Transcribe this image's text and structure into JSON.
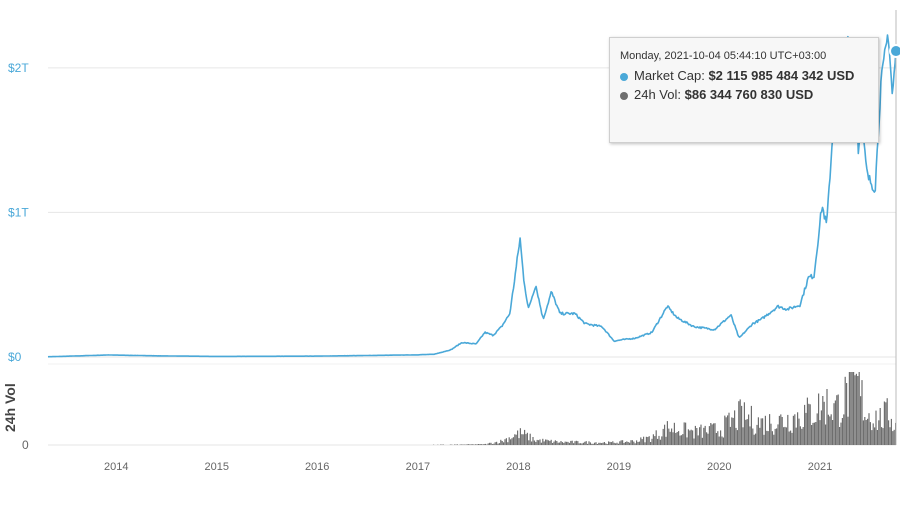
{
  "chart_data": {
    "type": "area",
    "title": "",
    "x_ticks": [
      "2014",
      "2015",
      "2016",
      "2017",
      "2018",
      "2019",
      "2020",
      "2021"
    ],
    "xlim": [
      "2013-04-28",
      "2021-10-04"
    ],
    "market_cap": {
      "name": "Market Cap",
      "unit": "USD trillion",
      "y_ticks": [
        "$0",
        "$1T",
        "$2T"
      ],
      "ylim": [
        0,
        2.4
      ],
      "color": "#4aa8d8",
      "points": [
        [
          "2013-04-28",
          0.0015
        ],
        [
          "2013-12-04",
          0.014
        ],
        [
          "2014-06-01",
          0.008
        ],
        [
          "2015-01-01",
          0.004
        ],
        [
          "2016-01-01",
          0.006
        ],
        [
          "2016-12-31",
          0.015
        ],
        [
          "2017-03-01",
          0.019
        ],
        [
          "2017-05-01",
          0.05
        ],
        [
          "2017-06-10",
          0.1
        ],
        [
          "2017-08-01",
          0.09
        ],
        [
          "2017-09-01",
          0.17
        ],
        [
          "2017-10-01",
          0.15
        ],
        [
          "2017-11-01",
          0.21
        ],
        [
          "2017-12-01",
          0.3
        ],
        [
          "2017-12-20",
          0.56
        ],
        [
          "2018-01-07",
          0.82
        ],
        [
          "2018-01-20",
          0.55
        ],
        [
          "2018-02-06",
          0.33
        ],
        [
          "2018-03-05",
          0.5
        ],
        [
          "2018-04-01",
          0.26
        ],
        [
          "2018-05-01",
          0.45
        ],
        [
          "2018-06-01",
          0.3
        ],
        [
          "2018-07-25",
          0.3
        ],
        [
          "2018-09-01",
          0.23
        ],
        [
          "2018-11-01",
          0.21
        ],
        [
          "2018-12-15",
          0.11
        ],
        [
          "2019-01-15",
          0.12
        ],
        [
          "2019-03-01",
          0.13
        ],
        [
          "2019-05-01",
          0.17
        ],
        [
          "2019-06-26",
          0.35
        ],
        [
          "2019-08-01",
          0.27
        ],
        [
          "2019-10-01",
          0.21
        ],
        [
          "2019-12-15",
          0.19
        ],
        [
          "2020-02-12",
          0.29
        ],
        [
          "2020-03-13",
          0.13
        ],
        [
          "2020-05-01",
          0.23
        ],
        [
          "2020-06-01",
          0.26
        ],
        [
          "2020-08-01",
          0.35
        ],
        [
          "2020-09-05",
          0.33
        ],
        [
          "2020-10-20",
          0.36
        ],
        [
          "2020-11-20",
          0.55
        ],
        [
          "2020-12-10",
          0.56
        ],
        [
          "2021-01-08",
          1.05
        ],
        [
          "2021-01-25",
          0.91
        ],
        [
          "2021-02-20",
          1.65
        ],
        [
          "2021-03-13",
          1.8
        ],
        [
          "2021-04-14",
          2.2
        ],
        [
          "2021-04-25",
          1.78
        ],
        [
          "2021-05-10",
          2.1
        ],
        [
          "2021-05-19",
          1.42
        ],
        [
          "2021-06-01",
          1.6
        ],
        [
          "2021-06-22",
          1.25
        ],
        [
          "2021-07-20",
          1.16
        ],
        [
          "2021-08-10",
          1.88
        ],
        [
          "2021-09-06",
          2.25
        ],
        [
          "2021-09-21",
          1.8
        ],
        [
          "2021-10-04",
          2.116
        ]
      ]
    },
    "volume": {
      "name": "24h Vol",
      "y_title": "24h Vol",
      "y_ticks": [
        "0"
      ],
      "ylim": [
        0,
        320
      ],
      "unit": "USD billion",
      "color": "#6e6e6e",
      "points": [
        [
          "2013-04-28",
          0.05
        ],
        [
          "2017-01-01",
          0.5
        ],
        [
          "2017-06-01",
          2
        ],
        [
          "2017-09-01",
          4
        ],
        [
          "2017-11-01",
          20
        ],
        [
          "2017-12-15",
          50
        ],
        [
          "2018-01-10",
          60
        ],
        [
          "2018-03-01",
          25
        ],
        [
          "2018-06-01",
          15
        ],
        [
          "2018-12-01",
          12
        ],
        [
          "2019-03-01",
          20
        ],
        [
          "2019-05-01",
          40
        ],
        [
          "2019-07-01",
          90
        ],
        [
          "2019-10-01",
          65
        ],
        [
          "2020-01-01",
          80
        ],
        [
          "2020-03-15",
          150
        ],
        [
          "2020-06-01",
          110
        ],
        [
          "2020-09-01",
          130
        ],
        [
          "2020-12-01",
          170
        ],
        [
          "2021-01-15",
          210
        ],
        [
          "2021-03-01",
          190
        ],
        [
          "2021-05-15",
          310
        ],
        [
          "2021-06-15",
          170
        ],
        [
          "2021-08-01",
          130
        ],
        [
          "2021-09-07",
          160
        ],
        [
          "2021-10-04",
          86.3
        ]
      ]
    },
    "legend": "none",
    "grid": true,
    "tooltip": {
      "date": "Monday, 2021-10-04 05:44:10 UTC+03:00",
      "market_cap_label": "Market Cap:",
      "market_cap_value": "$2 115 985 484 342 USD",
      "volume_label": "24h Vol:",
      "volume_value": "$86 344 760 830 USD"
    }
  }
}
